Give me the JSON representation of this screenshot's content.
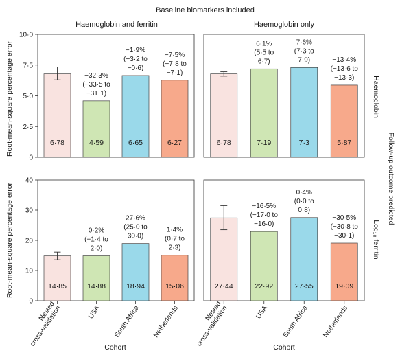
{
  "chart_data": {
    "type": "bar",
    "title": "Baseline biomarkers included",
    "xlabel": "Cohort",
    "ylabel": "Root-mean-square percentage error",
    "right_title": "Follow-up outcome predicted",
    "categories": [
      "Nested cross-validation",
      "USA",
      "South Africa",
      "Netherlands"
    ],
    "category_lines": [
      [
        "Nested",
        "cross-validation"
      ],
      [
        "USA"
      ],
      [
        "South Africa"
      ],
      [
        "Netherlands"
      ]
    ],
    "colors": [
      "#f9e3e0",
      "#cfe6b4",
      "#9ad9ea",
      "#f7a98b"
    ],
    "grid": false,
    "columns": [
      "Haemoglobin and ferritin",
      "Haemoglobin only"
    ],
    "rows": [
      {
        "label": "Haemoglobin",
        "ylim": [
          0,
          10
        ],
        "ticks": [
          "0",
          "2·5",
          "5·0",
          "7·5",
          "10·0"
        ],
        "tick_values": [
          0,
          2.5,
          5,
          7.5,
          10
        ]
      },
      {
        "label": "Log₁₀ ferritin",
        "ylim": [
          0,
          40
        ],
        "ticks": [
          "0",
          "10",
          "20",
          "30",
          "40"
        ],
        "tick_values": [
          0,
          10,
          20,
          30,
          40
        ]
      }
    ],
    "panels": [
      {
        "row": 0,
        "col": 0,
        "values": [
          6.78,
          4.59,
          6.65,
          6.27
        ],
        "value_labels": [
          "6·78",
          "4·59",
          "6·65",
          "6·27"
        ],
        "error_bar": {
          "category": 0,
          "low": 6.3,
          "high": 7.35
        },
        "annotations": [
          null,
          [
            "−32·3%",
            "(−33·5 to",
            "−31·1)"
          ],
          [
            "−1·9%",
            "(−3·2 to",
            "−0·6)"
          ],
          [
            "−7·5%",
            "(−7·8 to",
            "−7·1)"
          ]
        ]
      },
      {
        "row": 0,
        "col": 1,
        "values": [
          6.78,
          7.19,
          7.3,
          5.87
        ],
        "value_labels": [
          "6·78",
          "7·19",
          "7·3",
          "5·87"
        ],
        "error_bar": {
          "category": 0,
          "low": 6.6,
          "high": 6.95
        },
        "annotations": [
          null,
          [
            "6·1%",
            "(5·5 to",
            "6·7)"
          ],
          [
            "7·6%",
            "(7·3 to",
            "7·9)"
          ],
          [
            "−13·4%",
            "(−13·6 to",
            "−13·3)"
          ]
        ]
      },
      {
        "row": 1,
        "col": 0,
        "values": [
          14.85,
          14.88,
          18.94,
          15.06
        ],
        "value_labels": [
          "14·85",
          "14·88",
          "18·94",
          "15·06"
        ],
        "error_bar": {
          "category": 0,
          "low": 13.6,
          "high": 16.1
        },
        "annotations": [
          null,
          [
            "0·2%",
            "(−1·4 to",
            "2·0)"
          ],
          [
            "27·6%",
            "(25·0 to",
            "30·0)"
          ],
          [
            "1·4%",
            "(0·7 to",
            "2·3)"
          ]
        ]
      },
      {
        "row": 1,
        "col": 1,
        "values": [
          27.44,
          22.92,
          27.55,
          19.09
        ],
        "value_labels": [
          "27·44",
          "22·92",
          "27·55",
          "19·09"
        ],
        "error_bar": {
          "category": 0,
          "low": 23.5,
          "high": 31.5
        },
        "annotations": [
          null,
          [
            "−16·5%",
            "(−17·0 to",
            "−16·0)"
          ],
          [
            "0·4%",
            "(0·0 to",
            "0·8)"
          ],
          [
            "−30·5%",
            "(−30·8 to",
            "−30·1)"
          ]
        ]
      }
    ]
  }
}
